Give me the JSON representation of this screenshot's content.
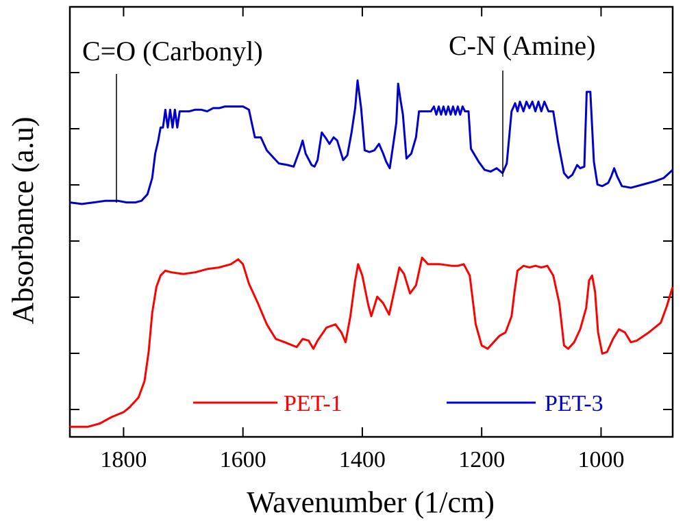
{
  "chart_data": {
    "type": "line",
    "xlabel": "Wavenumber (1/cm)",
    "ylabel": "Absorbance (a.u)",
    "xlim": [
      1890,
      880
    ],
    "x_reversed": true,
    "xticks": [
      1800,
      1600,
      1400,
      1200,
      1000
    ],
    "y_tick_count": 7,
    "grid": false,
    "legend_position": "bottom",
    "annotations": [
      {
        "text": "C=O (Carbonyl)",
        "x": 1820
      },
      {
        "text": "C-N (Amine)",
        "x": 1180
      }
    ],
    "series": [
      {
        "name": "PET-1",
        "color": "#ff0000",
        "points": [
          [
            1890,
            0.02
          ],
          [
            1860,
            0.02
          ],
          [
            1840,
            0.04
          ],
          [
            1820,
            0.08
          ],
          [
            1800,
            0.11
          ],
          [
            1790,
            0.14
          ],
          [
            1775,
            0.2
          ],
          [
            1765,
            0.3
          ],
          [
            1758,
            0.48
          ],
          [
            1752,
            0.72
          ],
          [
            1745,
            0.88
          ],
          [
            1738,
            0.95
          ],
          [
            1730,
            0.98
          ],
          [
            1720,
            0.97
          ],
          [
            1700,
            0.96
          ],
          [
            1680,
            0.97
          ],
          [
            1660,
            0.99
          ],
          [
            1640,
            1.0
          ],
          [
            1620,
            1.02
          ],
          [
            1608,
            1.05
          ],
          [
            1600,
            1.02
          ],
          [
            1590,
            0.9
          ],
          [
            1575,
            0.78
          ],
          [
            1560,
            0.65
          ],
          [
            1545,
            0.56
          ],
          [
            1530,
            0.54
          ],
          [
            1510,
            0.51
          ],
          [
            1500,
            0.56
          ],
          [
            1490,
            0.55
          ],
          [
            1482,
            0.5
          ],
          [
            1475,
            0.55
          ],
          [
            1460,
            0.63
          ],
          [
            1445,
            0.65
          ],
          [
            1435,
            0.6
          ],
          [
            1428,
            0.54
          ],
          [
            1420,
            0.7
          ],
          [
            1412,
            0.92
          ],
          [
            1407,
            1.02
          ],
          [
            1400,
            0.95
          ],
          [
            1390,
            0.77
          ],
          [
            1385,
            0.7
          ],
          [
            1375,
            0.82
          ],
          [
            1365,
            0.78
          ],
          [
            1355,
            0.71
          ],
          [
            1345,
            0.88
          ],
          [
            1338,
            1.0
          ],
          [
            1330,
            0.96
          ],
          [
            1320,
            0.84
          ],
          [
            1310,
            0.89
          ],
          [
            1300,
            1.06
          ],
          [
            1290,
            1.02
          ],
          [
            1270,
            1.02
          ],
          [
            1250,
            1.01
          ],
          [
            1240,
            1.01
          ],
          [
            1230,
            1.02
          ],
          [
            1220,
            0.95
          ],
          [
            1210,
            0.65
          ],
          [
            1200,
            0.52
          ],
          [
            1190,
            0.5
          ],
          [
            1180,
            0.54
          ],
          [
            1170,
            0.58
          ],
          [
            1160,
            0.6
          ],
          [
            1150,
            0.7
          ],
          [
            1145,
            0.85
          ],
          [
            1140,
            0.98
          ],
          [
            1130,
            1.01
          ],
          [
            1120,
            1.0
          ],
          [
            1110,
            1.01
          ],
          [
            1100,
            1.0
          ],
          [
            1090,
            1.01
          ],
          [
            1080,
            0.95
          ],
          [
            1070,
            0.78
          ],
          [
            1062,
            0.52
          ],
          [
            1055,
            0.5
          ],
          [
            1045,
            0.54
          ],
          [
            1035,
            0.62
          ],
          [
            1025,
            0.75
          ],
          [
            1020,
            0.92
          ],
          [
            1015,
            0.95
          ],
          [
            1010,
            0.85
          ],
          [
            1005,
            0.6
          ],
          [
            998,
            0.47
          ],
          [
            990,
            0.48
          ],
          [
            980,
            0.56
          ],
          [
            970,
            0.62
          ],
          [
            960,
            0.6
          ],
          [
            950,
            0.54
          ],
          [
            940,
            0.55
          ],
          [
            920,
            0.6
          ],
          [
            900,
            0.66
          ],
          [
            890,
            0.76
          ],
          [
            880,
            0.88
          ]
        ]
      },
      {
        "name": "PET-3",
        "color": "#0000cc",
        "points": [
          [
            1890,
            1.4
          ],
          [
            1870,
            1.39
          ],
          [
            1850,
            1.4
          ],
          [
            1830,
            1.41
          ],
          [
            1810,
            1.41
          ],
          [
            1795,
            1.4
          ],
          [
            1780,
            1.4
          ],
          [
            1770,
            1.41
          ],
          [
            1760,
            1.45
          ],
          [
            1752,
            1.55
          ],
          [
            1747,
            1.7
          ],
          [
            1742,
            1.78
          ],
          [
            1738,
            1.86
          ],
          [
            1734,
            1.86
          ],
          [
            1730,
            1.97
          ],
          [
            1726,
            1.86
          ],
          [
            1722,
            1.97
          ],
          [
            1718,
            1.86
          ],
          [
            1714,
            1.97
          ],
          [
            1710,
            1.86
          ],
          [
            1706,
            1.96
          ],
          [
            1700,
            1.96
          ],
          [
            1690,
            1.96
          ],
          [
            1680,
            1.97
          ],
          [
            1670,
            1.97
          ],
          [
            1660,
            1.96
          ],
          [
            1650,
            1.98
          ],
          [
            1640,
            1.98
          ],
          [
            1630,
            1.99
          ],
          [
            1620,
            1.99
          ],
          [
            1610,
            1.99
          ],
          [
            1600,
            1.99
          ],
          [
            1590,
            1.97
          ],
          [
            1580,
            1.8
          ],
          [
            1570,
            1.8
          ],
          [
            1560,
            1.72
          ],
          [
            1550,
            1.68
          ],
          [
            1540,
            1.64
          ],
          [
            1525,
            1.63
          ],
          [
            1515,
            1.62
          ],
          [
            1505,
            1.72
          ],
          [
            1500,
            1.78
          ],
          [
            1495,
            1.7
          ],
          [
            1485,
            1.63
          ],
          [
            1480,
            1.62
          ],
          [
            1475,
            1.66
          ],
          [
            1468,
            1.83
          ],
          [
            1462,
            1.8
          ],
          [
            1455,
            1.76
          ],
          [
            1448,
            1.8
          ],
          [
            1442,
            1.78
          ],
          [
            1432,
            1.66
          ],
          [
            1425,
            1.69
          ],
          [
            1418,
            1.83
          ],
          [
            1412,
            1.98
          ],
          [
            1408,
            2.15
          ],
          [
            1402,
            1.98
          ],
          [
            1396,
            1.72
          ],
          [
            1388,
            1.71
          ],
          [
            1380,
            1.72
          ],
          [
            1372,
            1.76
          ],
          [
            1365,
            1.7
          ],
          [
            1360,
            1.65
          ],
          [
            1354,
            1.61
          ],
          [
            1348,
            1.76
          ],
          [
            1343,
            1.89
          ],
          [
            1340,
            2.13
          ],
          [
            1336,
            2.03
          ],
          [
            1332,
            1.94
          ],
          [
            1326,
            1.67
          ],
          [
            1318,
            1.7
          ],
          [
            1310,
            1.8
          ],
          [
            1305,
            1.96
          ],
          [
            1300,
            1.96
          ],
          [
            1295,
            1.96
          ],
          [
            1285,
            1.96
          ],
          [
            1280,
            1.99
          ],
          [
            1276,
            1.94
          ],
          [
            1272,
            1.99
          ],
          [
            1268,
            1.94
          ],
          [
            1264,
            1.99
          ],
          [
            1260,
            1.94
          ],
          [
            1256,
            1.99
          ],
          [
            1252,
            1.94
          ],
          [
            1248,
            1.99
          ],
          [
            1244,
            1.94
          ],
          [
            1240,
            1.99
          ],
          [
            1236,
            1.94
          ],
          [
            1232,
            1.99
          ],
          [
            1228,
            1.96
          ],
          [
            1222,
            1.96
          ],
          [
            1218,
            1.73
          ],
          [
            1205,
            1.65
          ],
          [
            1195,
            1.6
          ],
          [
            1185,
            1.59
          ],
          [
            1175,
            1.61
          ],
          [
            1165,
            1.58
          ],
          [
            1158,
            1.64
          ],
          [
            1150,
            1.96
          ],
          [
            1144,
            2.01
          ],
          [
            1140,
            1.96
          ],
          [
            1136,
            2.02
          ],
          [
            1130,
            1.96
          ],
          [
            1125,
            2.02
          ],
          [
            1120,
            1.98
          ],
          [
            1115,
            2.02
          ],
          [
            1110,
            1.96
          ],
          [
            1105,
            2.02
          ],
          [
            1100,
            1.96
          ],
          [
            1095,
            2.02
          ],
          [
            1088,
            1.96
          ],
          [
            1080,
            1.96
          ],
          [
            1072,
            1.77
          ],
          [
            1062,
            1.58
          ],
          [
            1055,
            1.55
          ],
          [
            1048,
            1.57
          ],
          [
            1040,
            1.63
          ],
          [
            1035,
            1.61
          ],
          [
            1028,
            1.62
          ],
          [
            1024,
            2.08
          ],
          [
            1018,
            2.08
          ],
          [
            1012,
            1.65
          ],
          [
            1006,
            1.51
          ],
          [
            998,
            1.5
          ],
          [
            988,
            1.52
          ],
          [
            983,
            1.56
          ],
          [
            978,
            1.61
          ],
          [
            973,
            1.56
          ],
          [
            965,
            1.5
          ],
          [
            950,
            1.49
          ],
          [
            930,
            1.51
          ],
          [
            910,
            1.53
          ],
          [
            895,
            1.55
          ],
          [
            880,
            1.6
          ]
        ]
      }
    ]
  }
}
